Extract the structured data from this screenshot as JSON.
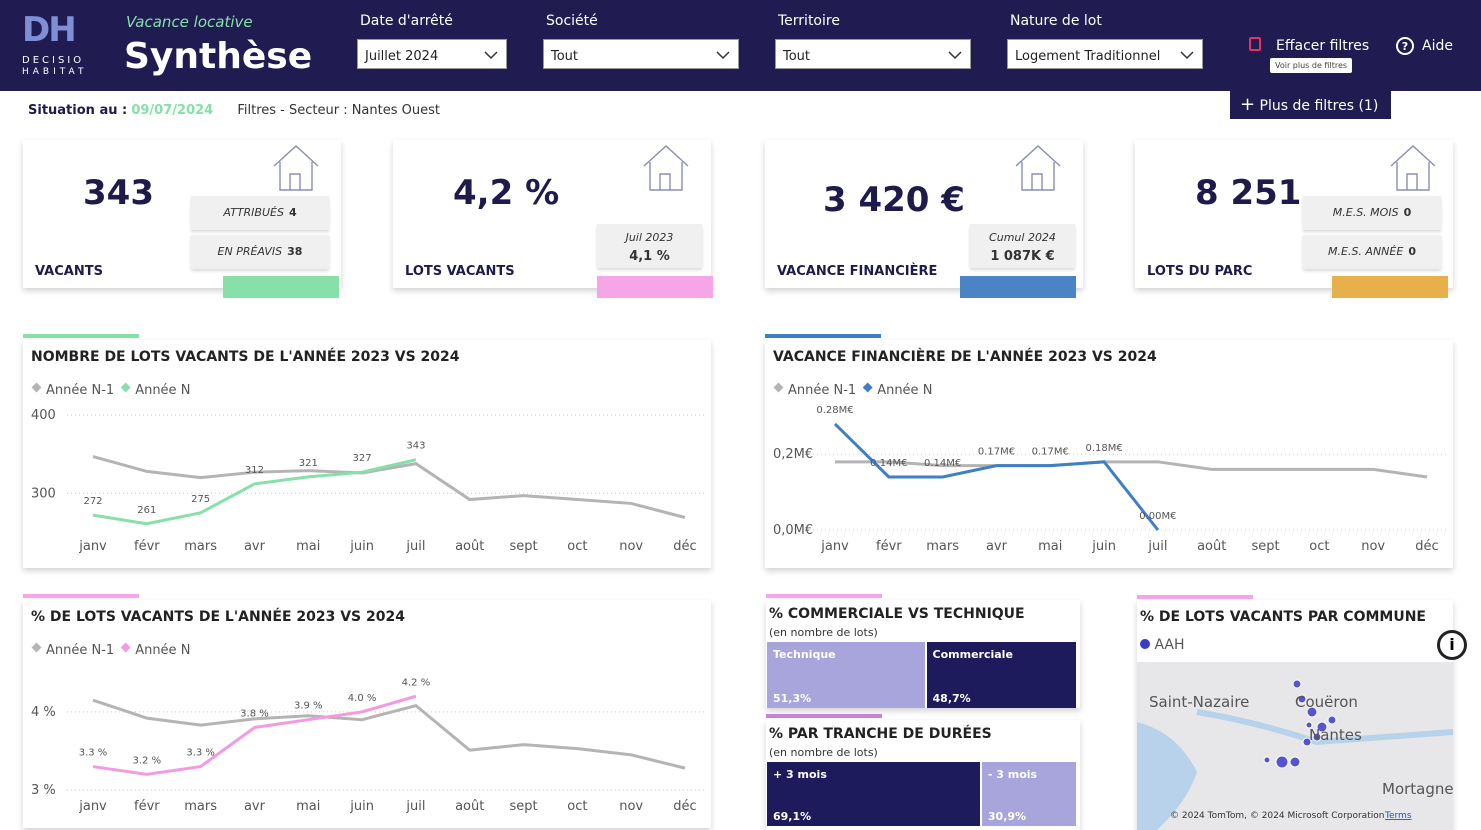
{
  "header": {
    "logo": "DH",
    "brand_line1": "DECISIO",
    "brand_line2": "HABITAT",
    "subtitle": "Vacance locative",
    "title": "Synthèse",
    "filters": [
      {
        "label": "Date d'arrêté",
        "value": "Juillet 2024"
      },
      {
        "label": "Société",
        "value": "Tout"
      },
      {
        "label": "Territoire",
        "value": "Tout"
      },
      {
        "label": "Nature de lot",
        "value": "Logement Traditionnel"
      }
    ],
    "clear_filters": "Effacer filtres",
    "help": "Aide",
    "tooltip": "Voir plus de filtres",
    "more_filters": "Plus de filtres (1)"
  },
  "status": {
    "label": "Situation au :",
    "date": "09/07/2024",
    "filters": "Filtres - Secteur : Nantes Ouest"
  },
  "kpis": [
    {
      "value": "343",
      "label": "VACANTS",
      "color": "#86e0a8",
      "details": [
        {
          "label": "ATTRIBUÉS",
          "value": "4"
        },
        {
          "label": "EN PRÉAVIS",
          "value": "38"
        }
      ]
    },
    {
      "value": "4,2 %",
      "label": "LOTS VACANTS",
      "color": "#f6a6e8",
      "details": [
        {
          "label": "Juil 2023",
          "value": "4,1 %"
        }
      ]
    },
    {
      "value": "3 420 €",
      "label": "VACANCE FINANCIÈRE",
      "color": "#4a84c4",
      "details": [
        {
          "label": "Cumul 2024",
          "value": "1 087K €"
        }
      ]
    },
    {
      "value": "8 251",
      "label": "LOTS DU PARC",
      "color": "#e8b04a",
      "details": [
        {
          "label": "M.E.S. MOIS",
          "value": "0"
        },
        {
          "label": "M.E.S. ANNÉE",
          "value": "0"
        }
      ]
    }
  ],
  "line_charts": [
    {
      "type": "line",
      "title": "NOMBRE DE LOTS VACANTS DE L'ANNÉE 2023 VS 2024",
      "categories": [
        "janv",
        "févr",
        "mars",
        "avr",
        "mai",
        "juin",
        "juil",
        "août",
        "sept",
        "oct",
        "nov",
        "déc"
      ],
      "series": [
        {
          "name": "Année N-1",
          "color": "#b4b4b4",
          "values": [
            347,
            328,
            320,
            327,
            329,
            326,
            338,
            292,
            297,
            292,
            287,
            269
          ]
        },
        {
          "name": "Année N",
          "color": "#86e0a8",
          "data_labels": true,
          "values": [
            272,
            261,
            275,
            312,
            321,
            327,
            343,
            null,
            null,
            null,
            null,
            null
          ]
        }
      ],
      "ylim": [
        253,
        413
      ],
      "yticks": [
        300,
        400
      ],
      "grid": true
    },
    {
      "type": "line",
      "title": "VACANCE FINANCIÈRE DE L'ANNÉE 2023 VS 2024",
      "categories": [
        "janv",
        "févr",
        "mars",
        "avr",
        "mai",
        "juin",
        "juil",
        "août",
        "sept",
        "oct",
        "nov",
        "déc"
      ],
      "series": [
        {
          "name": "Année N-1",
          "color": "#b4b4b4",
          "values": [
            0.18,
            0.18,
            0.17,
            0.17,
            0.17,
            0.18,
            0.18,
            0.16,
            0.16,
            0.16,
            0.16,
            0.14
          ]
        },
        {
          "name": "Année N",
          "color": "#3f7fc4",
          "data_labels": true,
          "values": [
            0.28,
            0.14,
            0.14,
            0.17,
            0.17,
            0.18,
            0.0,
            null,
            null,
            null,
            null,
            null
          ],
          "value_labels": [
            "0.28M€",
            "0.14M€",
            "0.14M€",
            "0.17M€",
            "0.17M€",
            "0.18M€",
            "0.00M€",
            null,
            null,
            null,
            null,
            null
          ]
        }
      ],
      "ylim": [
        0,
        0.33
      ],
      "yticks": [
        {
          "value": 0,
          "label": "0,0M€"
        },
        {
          "value": 0.2,
          "label": "0,2M€"
        }
      ],
      "grid": true
    },
    {
      "type": "line",
      "title": "% DE LOTS VACANTS DE L'ANNÉE 2023 VS 2024",
      "categories": [
        "janv",
        "févr",
        "mars",
        "avr",
        "mai",
        "juin",
        "juil",
        "août",
        "sept",
        "oct",
        "nov",
        "déc"
      ],
      "series": [
        {
          "name": "Année N-1",
          "color": "#b4b4b4",
          "values": [
            4.15,
            3.92,
            3.83,
            3.91,
            3.95,
            3.9,
            4.08,
            3.51,
            3.58,
            3.53,
            3.45,
            3.28
          ]
        },
        {
          "name": "Année N",
          "color": "#f29be0",
          "data_labels": true,
          "values": [
            3.3,
            3.2,
            3.3,
            3.8,
            3.9,
            4.0,
            4.2,
            null,
            null,
            null,
            null,
            null
          ],
          "value_labels": [
            "3.3 %",
            "3.2 %",
            "3.3 %",
            "3.8 %",
            "3.9 %",
            "4.0 %",
            "4.2 %",
            null,
            null,
            null,
            null,
            null
          ]
        }
      ],
      "ylim": [
        3,
        4.6
      ],
      "yticks": [
        {
          "value": 3,
          "label": "3 %"
        },
        {
          "value": 4,
          "label": "4 %"
        }
      ],
      "grid": true
    }
  ],
  "treemaps": [
    {
      "type": "treemap",
      "title": "% COMMERCIALE VS TECHNIQUE",
      "subtitle": "(en nombre de lots)",
      "categories": [
        "Technique",
        "Commerciale"
      ],
      "values": [
        51.3,
        48.7
      ],
      "value_labels": [
        "51,3%",
        "48,7%"
      ],
      "colors": [
        "#a8a4dc",
        "#1e1b5c"
      ]
    },
    {
      "type": "treemap",
      "title": "% PAR TRANCHE DE DURÉES",
      "subtitle": "(en nombre de lots)",
      "categories": [
        "+ 3 mois",
        "- 3 mois"
      ],
      "values": [
        69.1,
        30.9
      ],
      "value_labels": [
        "69,1%",
        "30,9%"
      ],
      "colors": [
        "#1e1b5c",
        "#a8a4dc"
      ]
    }
  ],
  "map": {
    "title": "% DE LOTS VACANTS PAR COMMUNE",
    "legend": "AAH",
    "places": [
      "Saint-Nazaire",
      "Couëron",
      "Nantes",
      "Mortagne"
    ],
    "copyright": "© 2024 TomTom, © 2024 Microsoft Corporation",
    "terms": "Terms"
  }
}
